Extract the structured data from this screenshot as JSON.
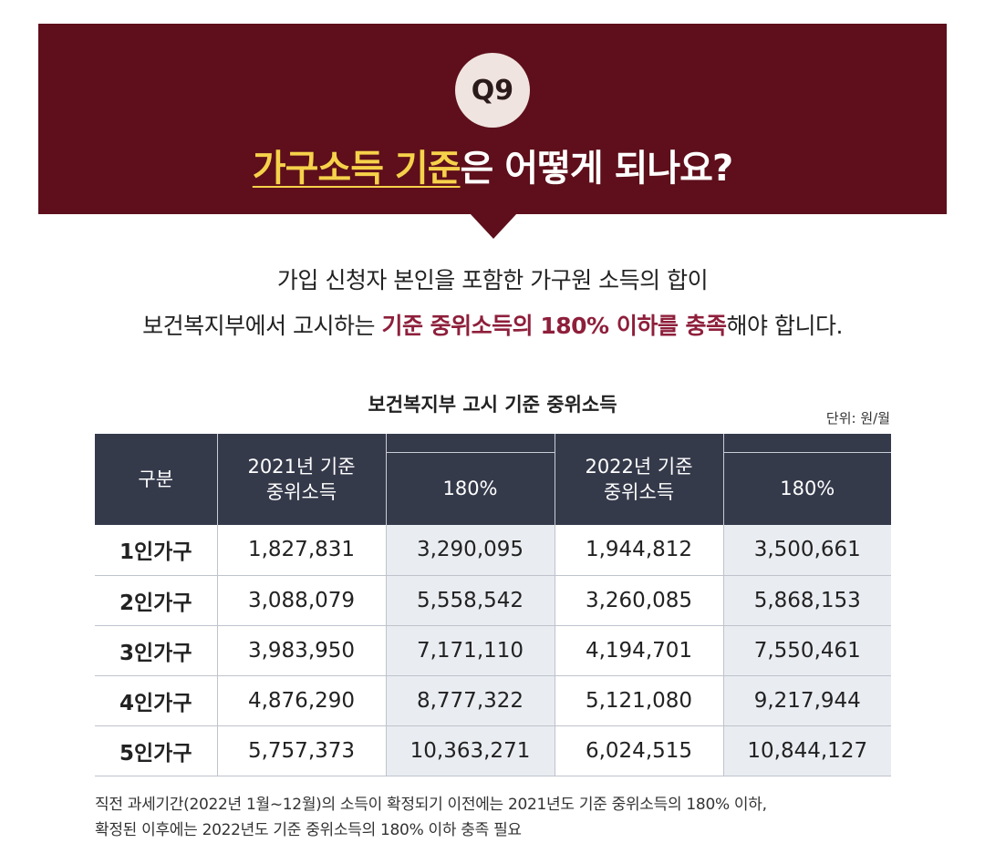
{
  "header": {
    "badge": "Q9",
    "title_highlight": "가구소득 기준",
    "title_rest": "은 어떻게 되나요?"
  },
  "intro": {
    "line1": "가입 신청자 본인을 포함한 가구원 소득의 합이",
    "line2_prefix": "보건복지부에서 고시하는 ",
    "line2_emphasis": "기준 중위소득의 180% 이하를 충족",
    "line2_suffix": "해야 합니다."
  },
  "table": {
    "title": "보건복지부 고시 기준 중위소득",
    "unit": "단위: 원/월",
    "headers": {
      "category": "구분",
      "y2021": "2021년 기준 중위소득",
      "y2021_pct": "180%",
      "y2022": "2022년 기준 중위소득",
      "y2022_pct": "180%"
    },
    "rows": [
      {
        "category": "1인가구",
        "y2021": "1,827,831",
        "y2021_pct": "3,290,095",
        "y2022": "1,944,812",
        "y2022_pct": "3,500,661"
      },
      {
        "category": "2인가구",
        "y2021": "3,088,079",
        "y2021_pct": "5,558,542",
        "y2022": "3,260,085",
        "y2022_pct": "5,868,153"
      },
      {
        "category": "3인가구",
        "y2021": "3,983,950",
        "y2021_pct": "7,171,110",
        "y2022": "4,194,701",
        "y2022_pct": "7,550,461"
      },
      {
        "category": "4인가구",
        "y2021": "4,876,290",
        "y2021_pct": "8,777,322",
        "y2022": "5,121,080",
        "y2022_pct": "9,217,944"
      },
      {
        "category": "5인가구",
        "y2021": "5,757,373",
        "y2021_pct": "10,363,271",
        "y2022": "6,024,515",
        "y2022_pct": "10,844,127"
      }
    ]
  },
  "footnote": {
    "line1": "직전 과세기간(2022년 1월~12월)의 소득이 확정되기 이전에는 2021년도 기준 중위소득의 180% 이하,",
    "line2": "확정된 이후에는 2022년도 기준 중위소득의 180% 이하 충족 필요"
  },
  "colors": {
    "banner": "#5e0f1b",
    "title_highlight": "#f6d24a",
    "emphasis": "#8e1f3b",
    "table_header": "#353a4b",
    "pct_column": "#e9ecf1"
  }
}
